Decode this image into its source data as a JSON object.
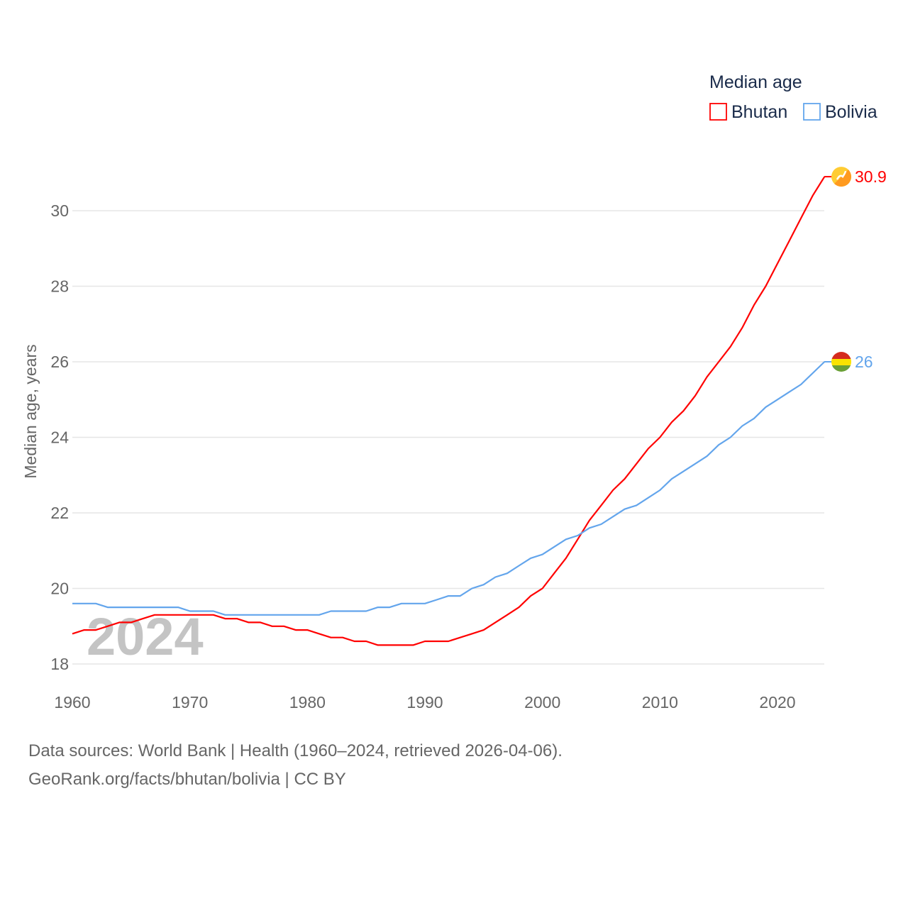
{
  "chart_data": {
    "type": "line",
    "title": "",
    "xlabel": "",
    "ylabel": "Median age, years",
    "xlim": [
      1960,
      2024
    ],
    "ylim": [
      18,
      31
    ],
    "yticks": [
      18,
      20,
      22,
      24,
      26,
      28,
      30
    ],
    "xticks": [
      1960,
      1970,
      1980,
      1990,
      2000,
      2010,
      2020
    ],
    "grid": true,
    "legend": {
      "title": "Median age",
      "placement": "top-right"
    },
    "watermark_year": "2024",
    "x": [
      1960,
      1961,
      1962,
      1963,
      1964,
      1965,
      1966,
      1967,
      1968,
      1969,
      1970,
      1971,
      1972,
      1973,
      1974,
      1975,
      1976,
      1977,
      1978,
      1979,
      1980,
      1981,
      1982,
      1983,
      1984,
      1985,
      1986,
      1987,
      1988,
      1989,
      1990,
      1991,
      1992,
      1993,
      1994,
      1995,
      1996,
      1997,
      1998,
      1999,
      2000,
      2001,
      2002,
      2003,
      2004,
      2005,
      2006,
      2007,
      2008,
      2009,
      2010,
      2011,
      2012,
      2013,
      2014,
      2015,
      2016,
      2017,
      2018,
      2019,
      2020,
      2021,
      2022,
      2023,
      2024
    ],
    "series": [
      {
        "name": "Bhutan",
        "color": "#ff0000",
        "end_label": "30.9",
        "flag": "bhutan-flag",
        "values": [
          18.8,
          18.9,
          18.9,
          19.0,
          19.1,
          19.1,
          19.2,
          19.3,
          19.3,
          19.3,
          19.3,
          19.3,
          19.3,
          19.2,
          19.2,
          19.1,
          19.1,
          19.0,
          19.0,
          18.9,
          18.9,
          18.8,
          18.7,
          18.7,
          18.6,
          18.6,
          18.5,
          18.5,
          18.5,
          18.5,
          18.6,
          18.6,
          18.6,
          18.7,
          18.8,
          18.9,
          19.1,
          19.3,
          19.5,
          19.8,
          20.0,
          20.4,
          20.8,
          21.3,
          21.8,
          22.2,
          22.6,
          22.9,
          23.3,
          23.7,
          24.0,
          24.4,
          24.7,
          25.1,
          25.6,
          26.0,
          26.4,
          26.9,
          27.5,
          28.0,
          28.6,
          29.2,
          29.8,
          30.4,
          30.9
        ]
      },
      {
        "name": "Bolivia",
        "color": "#63a5ec",
        "end_label": "26",
        "flag": "bolivia-flag",
        "values": [
          19.6,
          19.6,
          19.6,
          19.5,
          19.5,
          19.5,
          19.5,
          19.5,
          19.5,
          19.5,
          19.4,
          19.4,
          19.4,
          19.3,
          19.3,
          19.3,
          19.3,
          19.3,
          19.3,
          19.3,
          19.3,
          19.3,
          19.4,
          19.4,
          19.4,
          19.4,
          19.5,
          19.5,
          19.6,
          19.6,
          19.6,
          19.7,
          19.8,
          19.8,
          20.0,
          20.1,
          20.3,
          20.4,
          20.6,
          20.8,
          20.9,
          21.1,
          21.3,
          21.4,
          21.6,
          21.7,
          21.9,
          22.1,
          22.2,
          22.4,
          22.6,
          22.9,
          23.1,
          23.3,
          23.5,
          23.8,
          24.0,
          24.3,
          24.5,
          24.8,
          25.0,
          25.2,
          25.4,
          25.7,
          26.0
        ]
      }
    ]
  },
  "footer": {
    "line1": "Data sources: World Bank | Health (1960–2024, retrieved 2026-04-06).",
    "line2": "GeoRank.org/facts/bhutan/bolivia | CC BY"
  }
}
